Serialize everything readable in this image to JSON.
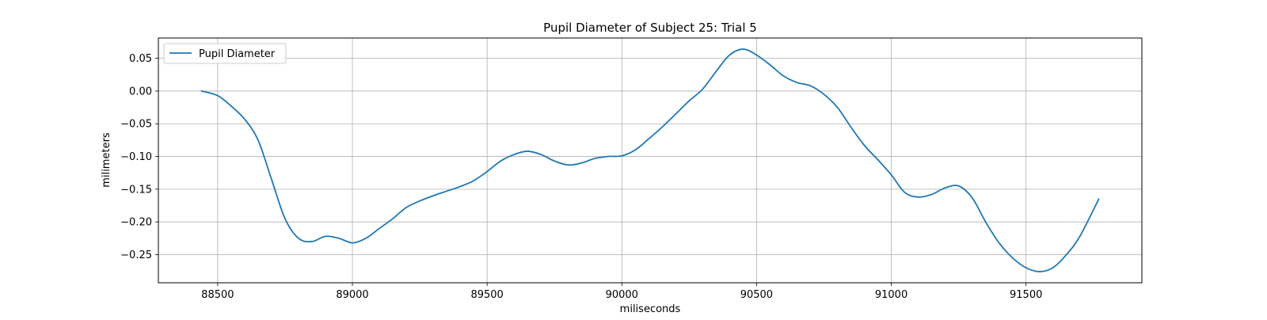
{
  "chart_data": {
    "type": "line",
    "title": "Pupil Diameter of Subject 25: Trial 5",
    "xlabel": "miliseconds",
    "ylabel": "milimeters",
    "xlim": [
      88280,
      91930
    ],
    "ylim": [
      -0.293,
      0.081
    ],
    "xticks": [
      88500,
      89000,
      89500,
      90000,
      90500,
      91000,
      91500
    ],
    "yticks": [
      -0.25,
      -0.2,
      -0.15,
      -0.1,
      -0.05,
      0.0,
      0.05
    ],
    "xtick_labels": [
      "88500",
      "89000",
      "89500",
      "90000",
      "90500",
      "91000",
      "91500"
    ],
    "ytick_labels": [
      "−0.25",
      "−0.20",
      "−0.15",
      "−0.10",
      "−0.05",
      "0.00",
      "0.05"
    ],
    "grid": true,
    "legend_position": "top-left",
    "series": [
      {
        "name": "Pupil Diameter",
        "color": "#1f77b4",
        "x": [
          88440,
          88500,
          88550,
          88600,
          88650,
          88700,
          88750,
          88800,
          88850,
          88900,
          88950,
          89000,
          89050,
          89100,
          89150,
          89200,
          89250,
          89300,
          89350,
          89400,
          89450,
          89500,
          89550,
          89600,
          89650,
          89700,
          89750,
          89800,
          89850,
          89900,
          89950,
          90000,
          90050,
          90100,
          90150,
          90200,
          90250,
          90300,
          90350,
          90400,
          90450,
          90500,
          90550,
          90600,
          90650,
          90700,
          90750,
          90800,
          90850,
          90900,
          90950,
          91000,
          91050,
          91100,
          91150,
          91200,
          91250,
          91300,
          91350,
          91400,
          91450,
          91500,
          91550,
          91600,
          91650,
          91700,
          91770
        ],
        "y": [
          0.0,
          -0.007,
          -0.023,
          -0.043,
          -0.075,
          -0.135,
          -0.195,
          -0.225,
          -0.23,
          -0.222,
          -0.225,
          -0.232,
          -0.225,
          -0.21,
          -0.195,
          -0.178,
          -0.168,
          -0.16,
          -0.153,
          -0.146,
          -0.137,
          -0.123,
          -0.107,
          -0.097,
          -0.092,
          -0.097,
          -0.107,
          -0.113,
          -0.11,
          -0.103,
          -0.1,
          -0.099,
          -0.09,
          -0.073,
          -0.055,
          -0.035,
          -0.015,
          0.003,
          0.03,
          0.055,
          0.064,
          0.055,
          0.04,
          0.023,
          0.013,
          0.008,
          -0.005,
          -0.025,
          -0.055,
          -0.083,
          -0.105,
          -0.128,
          -0.155,
          -0.162,
          -0.158,
          -0.148,
          -0.145,
          -0.163,
          -0.2,
          -0.232,
          -0.255,
          -0.27,
          -0.276,
          -0.27,
          -0.25,
          -0.222,
          -0.165
        ]
      }
    ]
  }
}
